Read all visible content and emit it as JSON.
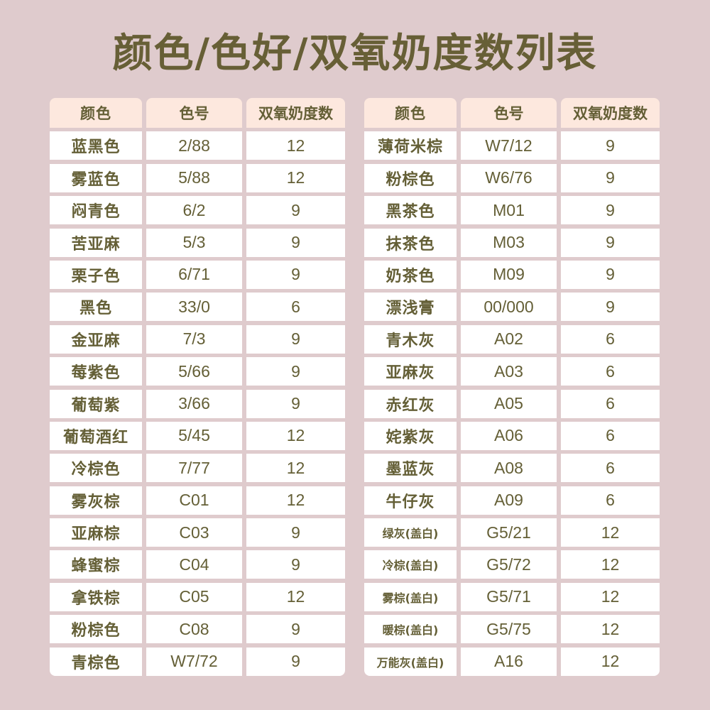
{
  "title": "颜色/色好/双氧奶度数列表",
  "colors": {
    "background": "#dfcbcd",
    "header": "#fde8de",
    "text": "#645f36",
    "cell": "#ffffff"
  },
  "headers": [
    "颜色",
    "色号",
    "双氧奶度数"
  ],
  "left_table": [
    [
      "蓝黑色",
      "2/88",
      "12"
    ],
    [
      "雾蓝色",
      "5/88",
      "12"
    ],
    [
      "闷青色",
      "6/2",
      "9"
    ],
    [
      "苦亚麻",
      "5/3",
      "9"
    ],
    [
      "栗子色",
      "6/71",
      "9"
    ],
    [
      "黑色",
      "33/0",
      "6"
    ],
    [
      "金亚麻",
      "7/3",
      "9"
    ],
    [
      "莓紫色",
      "5/66",
      "9"
    ],
    [
      "葡萄紫",
      "3/66",
      "9"
    ],
    [
      "葡萄酒红",
      "5/45",
      "12"
    ],
    [
      "冷棕色",
      "7/77",
      "12"
    ],
    [
      "雾灰棕",
      "C01",
      "12"
    ],
    [
      "亚麻棕",
      "C03",
      "9"
    ],
    [
      "蜂蜜棕",
      "C04",
      "9"
    ],
    [
      "拿铁棕",
      "C05",
      "12"
    ],
    [
      "粉棕色",
      "C08",
      "9"
    ],
    [
      "青棕色",
      "W7/72",
      "9"
    ]
  ],
  "right_table": [
    [
      "薄荷米棕",
      "W7/12",
      "9"
    ],
    [
      "粉棕色",
      "W6/76",
      "9"
    ],
    [
      "黑茶色",
      "M01",
      "9"
    ],
    [
      "抹茶色",
      "M03",
      "9"
    ],
    [
      "奶茶色",
      "M09",
      "9"
    ],
    [
      "漂浅膏",
      "00/000",
      "9"
    ],
    [
      "青木灰",
      "A02",
      "6"
    ],
    [
      "亚麻灰",
      "A03",
      "6"
    ],
    [
      "赤红灰",
      "A05",
      "6"
    ],
    [
      "姹紫灰",
      "A06",
      "6"
    ],
    [
      "墨蓝灰",
      "A08",
      "6"
    ],
    [
      "牛仔灰",
      "A09",
      "6"
    ],
    [
      "绿灰(盖白)",
      "G5/21",
      "12"
    ],
    [
      "冷棕(盖白)",
      "G5/72",
      "12"
    ],
    [
      "雾棕(盖白)",
      "G5/71",
      "12"
    ],
    [
      "暖棕(盖白)",
      "G5/75",
      "12"
    ],
    [
      "万能灰(盖白)",
      "A16",
      "12"
    ]
  ]
}
